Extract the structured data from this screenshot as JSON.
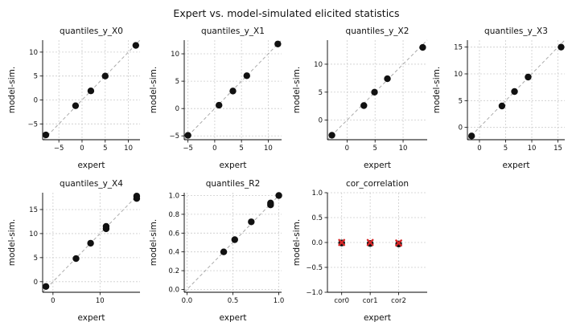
{
  "figure_title": "Expert vs. model-simulated elicited statistics",
  "chart_data": [
    {
      "type": "scatter",
      "title": "quantiles_y_X0",
      "xlabel": "expert",
      "ylabel": "model-sim.",
      "xlim": [
        -8.5,
        12.5
      ],
      "ylim": [
        -8.3,
        12.5
      ],
      "xticks": [
        -5,
        0,
        5,
        10
      ],
      "yticks": [
        -5,
        0,
        5,
        10
      ],
      "grid": true,
      "identity_line": true,
      "points": [
        {
          "x": -7.8,
          "y": -7.3
        },
        {
          "x": -1.4,
          "y": -1.2
        },
        {
          "x": 1.9,
          "y": 1.9
        },
        {
          "x": 5.0,
          "y": 5.0
        },
        {
          "x": 11.6,
          "y": 11.4
        }
      ]
    },
    {
      "type": "scatter",
      "title": "quantiles_y_X1",
      "xlabel": "expert",
      "ylabel": "model-sim.",
      "xlim": [
        -5.7,
        12.5
      ],
      "ylim": [
        -5.7,
        12.5
      ],
      "xticks": [
        -5,
        0,
        5,
        10
      ],
      "yticks": [
        -5,
        0,
        5,
        10
      ],
      "grid": true,
      "identity_line": true,
      "points": [
        {
          "x": -5.0,
          "y": -4.9
        },
        {
          "x": 0.8,
          "y": 0.6
        },
        {
          "x": 3.4,
          "y": 3.2
        },
        {
          "x": 6.0,
          "y": 6.0
        },
        {
          "x": 11.8,
          "y": 11.8
        }
      ]
    },
    {
      "type": "scatter",
      "title": "quantiles_y_X2",
      "xlabel": "expert",
      "ylabel": "model-sim.",
      "xlim": [
        -3.5,
        14.3
      ],
      "ylim": [
        -3.5,
        14.3
      ],
      "xticks": [
        0,
        5,
        10
      ],
      "yticks": [
        0,
        5,
        10
      ],
      "grid": true,
      "identity_line": true,
      "points": [
        {
          "x": -2.7,
          "y": -2.7
        },
        {
          "x": 3.0,
          "y": 2.6
        },
        {
          "x": 4.9,
          "y": 5.0
        },
        {
          "x": 7.2,
          "y": 7.4
        },
        {
          "x": 13.5,
          "y": 13.0
        }
      ]
    },
    {
      "type": "scatter",
      "title": "quantiles_y_X3",
      "xlabel": "expert",
      "ylabel": "model-sim.",
      "xlim": [
        -2.3,
        16.3
      ],
      "ylim": [
        -2.3,
        16.3
      ],
      "xticks": [
        0,
        5,
        10,
        15
      ],
      "yticks": [
        0,
        5,
        10,
        15
      ],
      "grid": true,
      "identity_line": true,
      "points": [
        {
          "x": -1.5,
          "y": -1.6
        },
        {
          "x": 4.3,
          "y": 4.0
        },
        {
          "x": 6.7,
          "y": 6.7
        },
        {
          "x": 9.3,
          "y": 9.4
        },
        {
          "x": 15.6,
          "y": 15.0
        }
      ]
    },
    {
      "type": "scatter",
      "title": "quantiles_y_X4",
      "xlabel": "expert",
      "ylabel": "model-sim.",
      "xlim": [
        -2.2,
        18.5
      ],
      "ylim": [
        -2.2,
        18.5
      ],
      "xticks": [
        0,
        10
      ],
      "yticks": [
        0,
        5,
        10,
        15
      ],
      "grid": true,
      "identity_line": true,
      "points": [
        {
          "x": -1.5,
          "y": -1.0
        },
        {
          "x": 4.9,
          "y": 4.8
        },
        {
          "x": 8.0,
          "y": 8.0
        },
        {
          "x": 11.3,
          "y": 11.0
        },
        {
          "x": 11.3,
          "y": 11.5
        },
        {
          "x": 17.8,
          "y": 17.3
        },
        {
          "x": 17.8,
          "y": 17.8
        }
      ]
    },
    {
      "type": "scatter",
      "title": "quantiles_R2",
      "xlabel": "expert",
      "ylabel": "model-sim.",
      "xlim": [
        -0.03,
        1.03
      ],
      "ylim": [
        -0.03,
        1.03
      ],
      "xticks": [
        0.0,
        0.5,
        1.0
      ],
      "yticks": [
        0.0,
        0.2,
        0.4,
        0.6,
        0.8,
        1.0
      ],
      "grid": true,
      "identity_line": true,
      "points": [
        {
          "x": 0.4,
          "y": 0.4
        },
        {
          "x": 0.52,
          "y": 0.53
        },
        {
          "x": 0.7,
          "y": 0.72
        },
        {
          "x": 0.91,
          "y": 0.9
        },
        {
          "x": 0.91,
          "y": 0.92
        },
        {
          "x": 1.0,
          "y": 1.0
        }
      ]
    },
    {
      "type": "scatter",
      "title": "cor_correlation",
      "xlabel": "expert",
      "ylabel": "model-sim.",
      "categories": [
        "cor0",
        "cor1",
        "cor2"
      ],
      "xlim": [
        -0.5,
        3.0
      ],
      "ylim": [
        -1.0,
        1.0
      ],
      "yticks": [
        -1.0,
        -0.5,
        0.0,
        0.5,
        1.0
      ],
      "grid": true,
      "expert_marker_color": "#d62728",
      "series": [
        {
          "values": [
            -0.01,
            -0.02,
            -0.03
          ]
        },
        {
          "values": [
            0.0,
            0.0,
            -0.01
          ]
        }
      ]
    }
  ]
}
